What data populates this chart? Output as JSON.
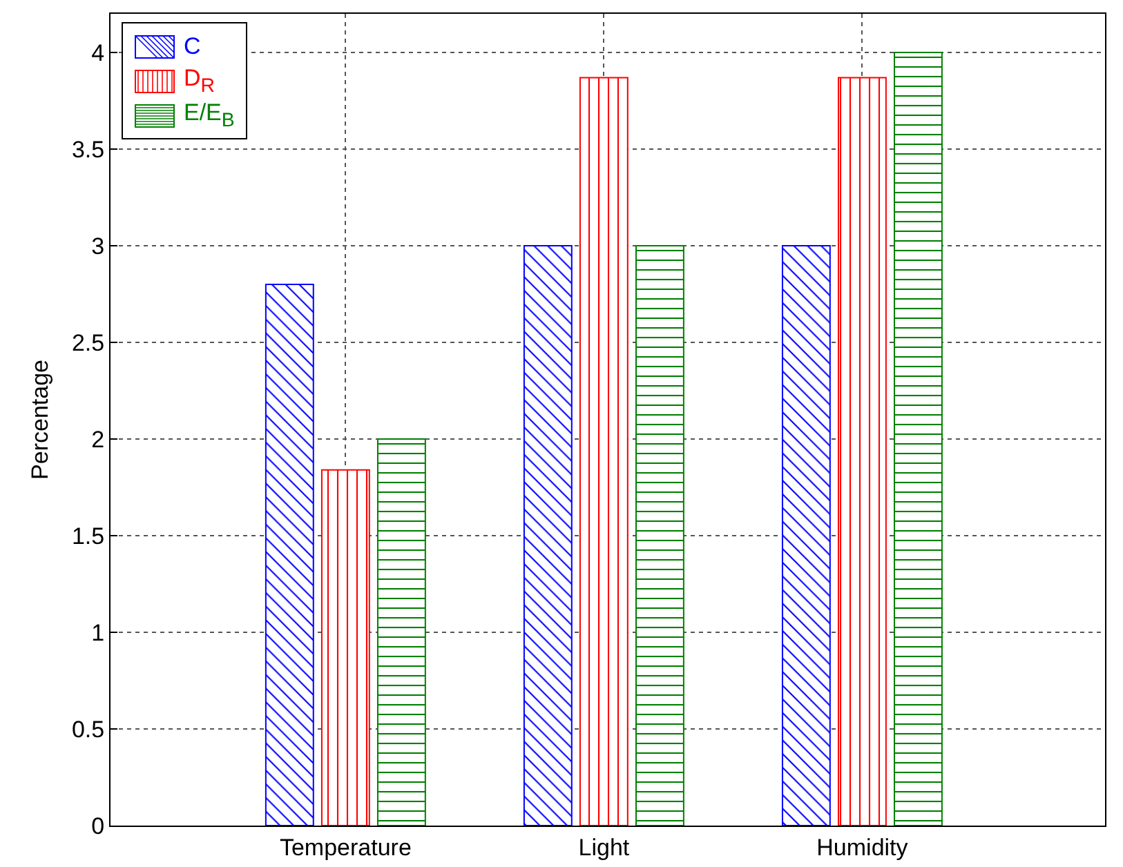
{
  "chart_data": {
    "type": "bar",
    "ylabel": "Percentage",
    "categories": [
      "Temperature",
      "Light",
      "Humidity"
    ],
    "series": [
      {
        "name": "C",
        "color": "#0000ff",
        "values": [
          2.8,
          3,
          3
        ]
      },
      {
        "name": "D$_{R}$",
        "color": "#ff0000",
        "values": [
          1.84,
          3.87,
          3.87
        ]
      },
      {
        "name": "E/E$_{B}$",
        "color": "#008000",
        "values": [
          2,
          3,
          4
        ]
      }
    ],
    "ylim": [
      0,
      4.2
    ],
    "yticks": [
      0,
      0.5,
      1,
      1.5,
      2,
      2.5,
      3,
      3.5,
      4
    ],
    "grid": true,
    "legend": "top left"
  }
}
